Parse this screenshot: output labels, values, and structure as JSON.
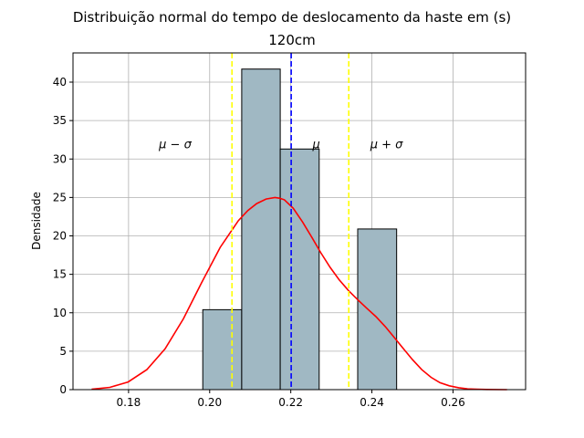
{
  "chart_data": {
    "type": "bar",
    "title": "Distribuição normal do tempo de deslocamento da haste em (s)",
    "subtitle": "120cm",
    "xlabel": "",
    "ylabel": "Densidade",
    "xlim": [
      0.1663,
      0.2779
    ],
    "ylim": [
      0,
      43.8
    ],
    "grid": true,
    "x_ticks": [
      0.18,
      0.2,
      0.22,
      0.24,
      0.26
    ],
    "x_tick_labels": [
      "0.18",
      "0.20",
      "0.22",
      "0.24",
      "0.26"
    ],
    "y_ticks": [
      0,
      5,
      10,
      15,
      20,
      25,
      30,
      35,
      40
    ],
    "y_tick_labels": [
      "0",
      "5",
      "10",
      "15",
      "20",
      "25",
      "30",
      "35",
      "40"
    ],
    "histogram": {
      "bin_edges": [
        0.1983,
        0.2079,
        0.2174,
        0.227,
        0.2365,
        0.2461
      ],
      "values": [
        10.4,
        41.7,
        31.3,
        0.0,
        20.9
      ],
      "fill_color": "#a0b8c3",
      "edge_color": "#000000"
    },
    "kde": {
      "color": "#ff0000",
      "x": [
        0.1709,
        0.1754,
        0.1799,
        0.1845,
        0.189,
        0.1935,
        0.198,
        0.2026,
        0.2071,
        0.2094,
        0.2116,
        0.2139,
        0.2161,
        0.2172,
        0.2184,
        0.2206,
        0.2229,
        0.2252,
        0.2274,
        0.2297,
        0.2319,
        0.2342,
        0.2365,
        0.2387,
        0.241,
        0.2433,
        0.2455,
        0.2478,
        0.25,
        0.2523,
        0.2546,
        0.2568,
        0.2591,
        0.2614,
        0.2636,
        0.2659,
        0.2682,
        0.2733
      ],
      "y": [
        0.05,
        0.3,
        1.0,
        2.6,
        5.3,
        9.2,
        13.9,
        18.5,
        22.0,
        23.3,
        24.2,
        24.8,
        25.0,
        24.9,
        24.7,
        23.6,
        21.8,
        19.8,
        17.8,
        15.9,
        14.3,
        12.9,
        11.7,
        10.6,
        9.5,
        8.2,
        6.8,
        5.3,
        3.9,
        2.6,
        1.6,
        0.9,
        0.5,
        0.25,
        0.1,
        0.05,
        0.02,
        0.0
      ]
    },
    "vlines": [
      {
        "x": 0.2055,
        "color": "#ffff00",
        "style": "dashed"
      },
      {
        "x": 0.2201,
        "color": "#0000ff",
        "style": "dashed"
      },
      {
        "x": 0.2343,
        "color": "#ffff00",
        "style": "dashed"
      }
    ],
    "annotations": [
      {
        "text": "μ − σ",
        "x": 0.1915,
        "y": 32.0
      },
      {
        "text": "μ",
        "x": 0.2263,
        "y": 32.0
      },
      {
        "text": "μ + σ",
        "x": 0.2436,
        "y": 32.0
      }
    ]
  }
}
